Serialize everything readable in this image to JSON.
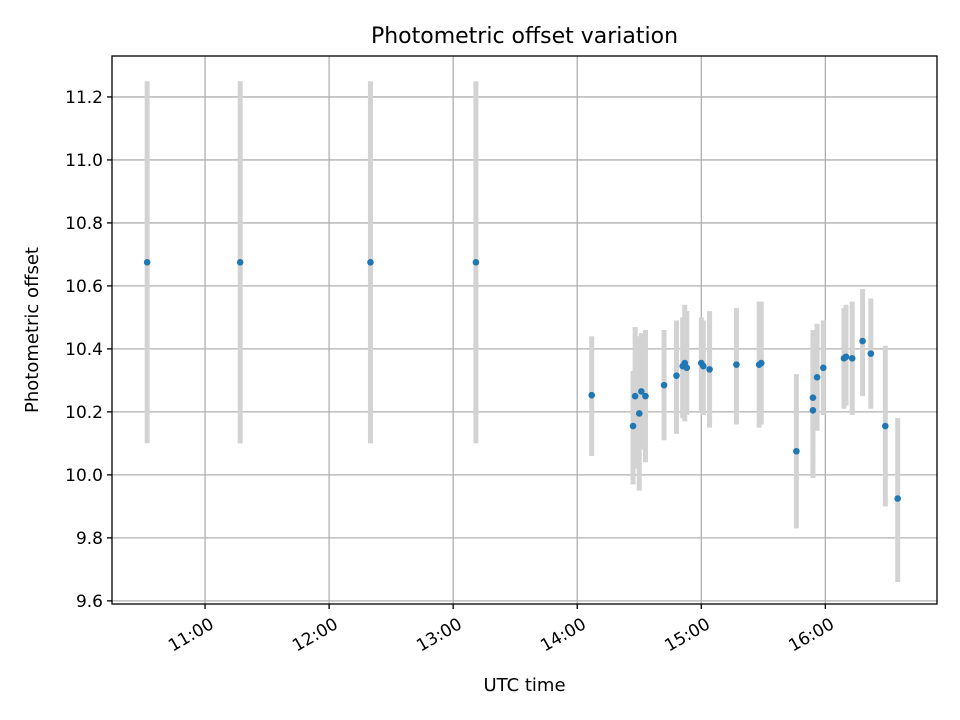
{
  "chart_data": {
    "type": "scatter",
    "title": "Photometric offset variation",
    "xlabel": "UTC time",
    "ylabel": "Photometric offset",
    "x_axis": "time (HH:MM UTC)",
    "xlim": [
      "10:15",
      "16:54"
    ],
    "ylim": [
      9.59,
      11.33
    ],
    "x_ticks": [
      "11:00",
      "12:00",
      "13:00",
      "14:00",
      "15:00",
      "16:00"
    ],
    "y_ticks": [
      9.6,
      9.8,
      10.0,
      10.2,
      10.4,
      10.6,
      10.8,
      11.0,
      11.2
    ],
    "grid": true,
    "colors": {
      "points": "#1f77b4",
      "error_bars": "#d3d3d3",
      "grid": "#b0b0b0"
    },
    "series": [
      {
        "points": [
          {
            "x": "10:32",
            "y": 10.675,
            "lo": 10.1,
            "hi": 11.25
          },
          {
            "x": "11:17",
            "y": 10.675,
            "lo": 10.1,
            "hi": 11.25
          },
          {
            "x": "12:20",
            "y": 10.675,
            "lo": 10.1,
            "hi": 11.25
          },
          {
            "x": "13:11",
            "y": 10.675,
            "lo": 10.1,
            "hi": 11.25
          },
          {
            "x": "14:07",
            "y": 10.253,
            "lo": 10.06,
            "hi": 10.44
          },
          {
            "x": "14:27",
            "y": 10.155,
            "lo": 9.97,
            "hi": 10.33
          },
          {
            "x": "14:28",
            "y": 10.25,
            "lo": 10.02,
            "hi": 10.47
          },
          {
            "x": "14:30",
            "y": 10.195,
            "lo": 9.95,
            "hi": 10.44
          },
          {
            "x": "14:31",
            "y": 10.265,
            "lo": 10.08,
            "hi": 10.45
          },
          {
            "x": "14:33",
            "y": 10.25,
            "lo": 10.04,
            "hi": 10.46
          },
          {
            "x": "14:42",
            "y": 10.285,
            "lo": 10.11,
            "hi": 10.46
          },
          {
            "x": "14:48",
            "y": 10.315,
            "lo": 10.13,
            "hi": 10.49
          },
          {
            "x": "14:51",
            "y": 10.345,
            "lo": 10.18,
            "hi": 10.5
          },
          {
            "x": "14:52",
            "y": 10.355,
            "lo": 10.17,
            "hi": 10.54
          },
          {
            "x": "14:53",
            "y": 10.34,
            "lo": 10.19,
            "hi": 10.52
          },
          {
            "x": "15:00",
            "y": 10.355,
            "lo": 10.2,
            "hi": 10.5
          },
          {
            "x": "15:01",
            "y": 10.345,
            "lo": 10.19,
            "hi": 10.49
          },
          {
            "x": "15:04",
            "y": 10.335,
            "lo": 10.15,
            "hi": 10.52
          },
          {
            "x": "15:17",
            "y": 10.35,
            "lo": 10.16,
            "hi": 10.53
          },
          {
            "x": "15:28",
            "y": 10.35,
            "lo": 10.15,
            "hi": 10.55
          },
          {
            "x": "15:29",
            "y": 10.355,
            "lo": 10.16,
            "hi": 10.55
          },
          {
            "x": "15:46",
            "y": 10.075,
            "lo": 9.83,
            "hi": 10.32
          },
          {
            "x": "15:54",
            "y": 10.205,
            "lo": 9.99,
            "hi": 10.41
          },
          {
            "x": "15:54",
            "y": 10.245,
            "lo": 10.02,
            "hi": 10.46
          },
          {
            "x": "15:56",
            "y": 10.31,
            "lo": 10.14,
            "hi": 10.48
          },
          {
            "x": "15:59",
            "y": 10.34,
            "lo": 10.19,
            "hi": 10.49
          },
          {
            "x": "16:09",
            "y": 10.37,
            "lo": 10.21,
            "hi": 10.53
          },
          {
            "x": "16:10",
            "y": 10.375,
            "lo": 10.22,
            "hi": 10.54
          },
          {
            "x": "16:13",
            "y": 10.37,
            "lo": 10.19,
            "hi": 10.55
          },
          {
            "x": "16:18",
            "y": 10.425,
            "lo": 10.25,
            "hi": 10.59
          },
          {
            "x": "16:22",
            "y": 10.385,
            "lo": 10.21,
            "hi": 10.56
          },
          {
            "x": "16:29",
            "y": 10.155,
            "lo": 9.9,
            "hi": 10.41
          },
          {
            "x": "16:35",
            "y": 9.925,
            "lo": 9.66,
            "hi": 10.18
          }
        ]
      }
    ]
  }
}
